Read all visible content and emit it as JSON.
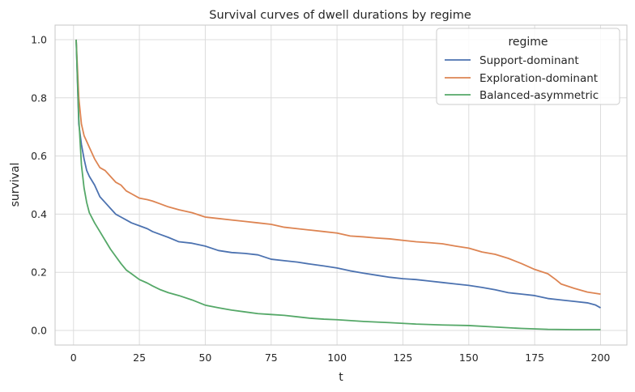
{
  "chart_data": {
    "type": "line",
    "title": "Survival curves of dwell durations by regime",
    "xlabel": "t",
    "ylabel": "survival",
    "xlim": [
      -7,
      210
    ],
    "ylim": [
      -0.05,
      1.05
    ],
    "xticks": [
      0,
      25,
      50,
      75,
      100,
      125,
      150,
      175,
      200
    ],
    "yticks": [
      0.0,
      0.2,
      0.4,
      0.6,
      0.8,
      1.0
    ],
    "grid": true,
    "legend": {
      "title": "regime",
      "placement": "top-right"
    },
    "series": [
      {
        "name": "Support-dominant",
        "color": "#4c72b0",
        "x": [
          1,
          2,
          3,
          4,
          5,
          6,
          8,
          10,
          12,
          14,
          16,
          18,
          20,
          22,
          25,
          28,
          30,
          33,
          36,
          40,
          45,
          50,
          55,
          60,
          65,
          70,
          75,
          80,
          85,
          90,
          95,
          100,
          105,
          110,
          115,
          120,
          125,
          130,
          135,
          140,
          145,
          150,
          155,
          160,
          165,
          170,
          175,
          180,
          185,
          190,
          195,
          198,
          200
        ],
        "y": [
          1.0,
          0.71,
          0.64,
          0.59,
          0.55,
          0.53,
          0.5,
          0.46,
          0.44,
          0.42,
          0.4,
          0.39,
          0.38,
          0.37,
          0.36,
          0.35,
          0.34,
          0.33,
          0.32,
          0.305,
          0.3,
          0.29,
          0.275,
          0.268,
          0.265,
          0.26,
          0.245,
          0.24,
          0.235,
          0.228,
          0.222,
          0.215,
          0.205,
          0.197,
          0.19,
          0.183,
          0.178,
          0.175,
          0.17,
          0.165,
          0.16,
          0.155,
          0.148,
          0.14,
          0.13,
          0.125,
          0.12,
          0.11,
          0.105,
          0.1,
          0.095,
          0.088,
          0.078
        ]
      },
      {
        "name": "Exploration-dominant",
        "color": "#dd8452",
        "x": [
          1,
          2,
          3,
          4,
          5,
          6,
          8,
          10,
          12,
          14,
          16,
          18,
          20,
          22,
          25,
          28,
          30,
          33,
          36,
          40,
          45,
          50,
          55,
          60,
          65,
          70,
          75,
          80,
          85,
          90,
          95,
          100,
          105,
          110,
          115,
          120,
          125,
          130,
          135,
          140,
          145,
          150,
          155,
          160,
          165,
          170,
          175,
          180,
          183,
          185,
          190,
          195,
          200
        ],
        "y": [
          1.0,
          0.8,
          0.71,
          0.67,
          0.65,
          0.63,
          0.59,
          0.56,
          0.55,
          0.53,
          0.51,
          0.5,
          0.48,
          0.47,
          0.455,
          0.45,
          0.445,
          0.435,
          0.425,
          0.415,
          0.405,
          0.39,
          0.385,
          0.38,
          0.375,
          0.37,
          0.365,
          0.355,
          0.35,
          0.345,
          0.34,
          0.335,
          0.325,
          0.322,
          0.318,
          0.315,
          0.31,
          0.305,
          0.302,
          0.298,
          0.29,
          0.283,
          0.27,
          0.262,
          0.248,
          0.23,
          0.21,
          0.195,
          0.175,
          0.16,
          0.145,
          0.132,
          0.125
        ]
      },
      {
        "name": "Balanced-asymmetric",
        "color": "#55a868",
        "x": [
          1,
          2,
          3,
          4,
          5,
          6,
          8,
          10,
          12,
          14,
          16,
          18,
          20,
          22,
          25,
          28,
          30,
          33,
          36,
          40,
          45,
          50,
          55,
          60,
          65,
          70,
          75,
          80,
          85,
          90,
          95,
          100,
          110,
          120,
          130,
          140,
          150,
          160,
          170,
          180,
          190,
          200
        ],
        "y": [
          1.0,
          0.73,
          0.57,
          0.49,
          0.44,
          0.405,
          0.37,
          0.34,
          0.31,
          0.28,
          0.255,
          0.23,
          0.208,
          0.195,
          0.175,
          0.163,
          0.153,
          0.14,
          0.13,
          0.12,
          0.105,
          0.087,
          0.078,
          0.07,
          0.064,
          0.058,
          0.055,
          0.052,
          0.047,
          0.042,
          0.039,
          0.037,
          0.031,
          0.027,
          0.022,
          0.019,
          0.017,
          0.012,
          0.007,
          0.004,
          0.003,
          0.003
        ]
      }
    ]
  }
}
